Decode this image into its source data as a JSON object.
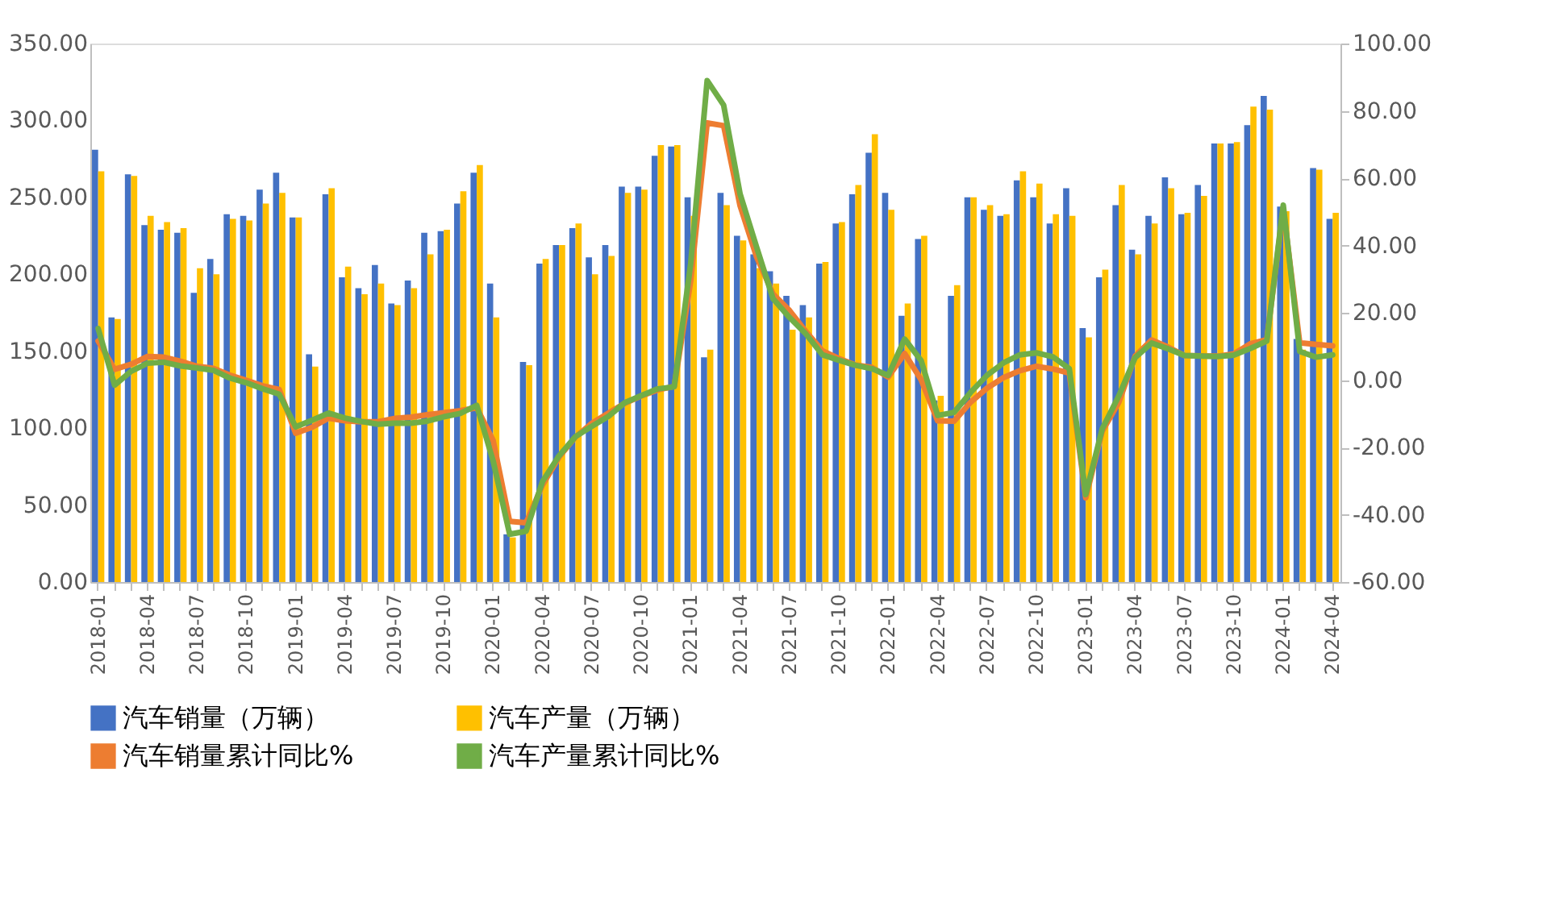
{
  "chart_data": {
    "type": "bar",
    "categories": [
      "2018-01",
      null,
      null,
      "2018-04",
      null,
      null,
      "2018-07",
      null,
      null,
      "2018-10",
      null,
      null,
      "2019-01",
      null,
      null,
      "2019-04",
      null,
      null,
      "2019-07",
      null,
      null,
      "2019-10",
      null,
      null,
      "2020-01",
      null,
      null,
      "2020-04",
      null,
      null,
      "2020-07",
      null,
      null,
      "2020-10",
      null,
      null,
      "2021-01",
      null,
      null,
      "2021-04",
      null,
      null,
      "2021-07",
      null,
      null,
      "2021-10",
      null,
      null,
      "2022-01",
      null,
      null,
      "2022-04",
      null,
      null,
      "2022-07",
      null,
      null,
      "2022-10",
      null,
      null,
      "2023-01",
      null,
      null,
      "2023-04",
      null,
      null,
      "2023-07",
      null,
      null,
      "2023-10",
      null,
      null,
      "2024-01",
      null,
      null,
      "2024-04"
    ],
    "ylim": [
      0,
      350
    ],
    "yticks": [
      {
        "value": 0,
        "label": "0.00"
      },
      {
        "value": 50,
        "label": "50.00"
      },
      {
        "value": 100,
        "label": "100.00"
      },
      {
        "value": 150,
        "label": "150.00"
      },
      {
        "value": 200,
        "label": "200.00"
      },
      {
        "value": 250,
        "label": "250.00"
      },
      {
        "value": 300,
        "label": "300.00"
      },
      {
        "value": 350,
        "label": "350.00"
      }
    ],
    "y2lim": [
      -60,
      100
    ],
    "y2ticks": [
      {
        "value": -60,
        "label": "-60.00"
      },
      {
        "value": -40,
        "label": "-40.00"
      },
      {
        "value": -20,
        "label": "-20.00"
      },
      {
        "value": 0,
        "label": "0.00"
      },
      {
        "value": 20,
        "label": "20.00"
      },
      {
        "value": 40,
        "label": "40.00"
      },
      {
        "value": 60,
        "label": "60.00"
      },
      {
        "value": 80,
        "label": "80.00"
      },
      {
        "value": 100,
        "label": "100.00"
      }
    ],
    "legend": "bottom",
    "grid": false,
    "series": [
      {
        "name": "汽车销量（万辆）",
        "color": "#4472c4",
        "values": [
          281,
          172,
          265,
          232,
          229,
          227,
          188,
          210,
          239,
          238,
          255,
          266,
          237,
          148,
          252,
          198,
          191,
          206,
          181,
          196,
          227,
          228,
          246,
          266,
          194,
          31,
          143,
          207,
          219,
          230,
          211,
          219,
          257,
          257,
          277,
          283,
          250,
          146,
          253,
          225,
          213,
          202,
          186,
          180,
          207,
          233,
          252,
          279,
          253,
          173,
          223,
          118,
          186,
          250,
          242,
          238,
          261,
          250,
          233,
          256,
          165,
          198,
          245,
          216,
          238,
          263,
          239,
          258,
          285,
          285,
          297,
          316,
          244,
          158,
          269,
          236
        ]
      },
      {
        "name": "汽车产量（万辆）",
        "color": "#ffc000",
        "values": [
          267,
          171,
          264,
          238,
          234,
          230,
          204,
          200,
          236,
          235,
          246,
          253,
          237,
          140,
          256,
          205,
          187,
          194,
          180,
          191,
          213,
          229,
          254,
          271,
          172,
          29,
          141,
          210,
          219,
          233,
          200,
          212,
          253,
          255,
          284,
          284,
          238,
          151,
          245,
          222,
          204,
          194,
          164,
          172,
          208,
          234,
          258,
          291,
          242,
          181,
          225,
          121,
          193,
          250,
          245,
          239,
          267,
          259,
          239,
          238,
          159,
          203,
          258,
          213,
          233,
          256,
          240,
          251,
          285,
          286,
          309,
          307,
          241,
          151,
          268,
          240
        ]
      },
      {
        "name": "汽车销量累计同比%",
        "color": "#ed7d31",
        "type": "line",
        "axis": "y2",
        "values": [
          11.6,
          3.2,
          4.7,
          7.0,
          6.8,
          5.6,
          4.1,
          3.5,
          1.5,
          -0.1,
          -1.7,
          -2.8,
          -15.8,
          -14.0,
          -11.3,
          -12.1,
          -12.4,
          -12.4,
          -11.4,
          -11.0,
          -10.3,
          -9.7,
          -9.1,
          -8.2,
          -18.0,
          -42.0,
          -42.4,
          -31.1,
          -22.9,
          -16.9,
          -12.8,
          -9.8,
          -6.9,
          -4.7,
          -2.9,
          -1.9,
          29.5,
          76.4,
          75.6,
          51.8,
          36.6,
          25.6,
          20.7,
          14.4,
          8.7,
          6.4,
          4.5,
          3.8,
          0.9,
          7.9,
          0.1,
          -12.1,
          -12.2,
          -6.6,
          -2.4,
          0.7,
          2.8,
          4.1,
          3.3,
          2.1,
          -35.0,
          -15.2,
          -6.7,
          7.1,
          11.9,
          9.8,
          7.3,
          7.2,
          7.1,
          7.8,
          10.8,
          12.0,
          51.0,
          11.1,
          10.6,
          10.2
        ]
      },
      {
        "name": "汽车产量累计同比%",
        "color": "#70ad47",
        "type": "line",
        "axis": "y2",
        "values": [
          15.3,
          -1.5,
          2.6,
          5.0,
          5.3,
          4.2,
          3.6,
          2.9,
          0.6,
          -0.8,
          -2.6,
          -4.2,
          -13.9,
          -11.9,
          -9.8,
          -11.3,
          -12.3,
          -13.1,
          -12.8,
          -12.8,
          -12.2,
          -10.9,
          -9.9,
          -7.5,
          -24.1,
          -45.8,
          -44.9,
          -30.1,
          -22.5,
          -16.8,
          -13.7,
          -10.8,
          -6.7,
          -4.6,
          -2.6,
          -2.0,
          34.6,
          89.0,
          81.7,
          55.3,
          39.6,
          24.2,
          18.6,
          13.7,
          7.5,
          5.9,
          4.4,
          3.4,
          1.4,
          12.2,
          5.8,
          -10.5,
          -9.6,
          -3.7,
          1.4,
          5.1,
          7.5,
          8.1,
          6.9,
          3.4,
          -34.0,
          -14.5,
          -4.8,
          6.7,
          11.0,
          9.3,
          7.3,
          7.1,
          7.0,
          7.4,
          9.4,
          11.6,
          52.0,
          8.5,
          6.8,
          7.5
        ]
      }
    ]
  }
}
